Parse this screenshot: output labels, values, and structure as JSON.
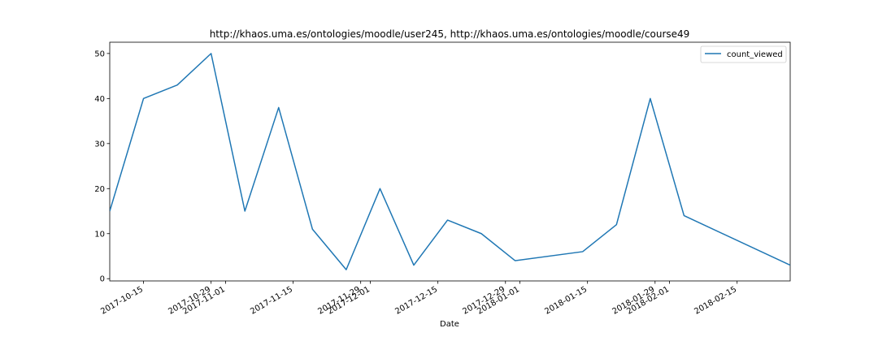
{
  "chart_data": {
    "type": "line",
    "title": "http://khaos.uma.es/ontologies/moodle/user245, http://khaos.uma.es/ontologies/moodle/course49",
    "xlabel": "Date",
    "ylabel": "",
    "legend_position": "top-right",
    "grid": false,
    "xlim": [
      "2017-10-08",
      "2018-02-26"
    ],
    "ylim": [
      -0.5,
      52.5
    ],
    "yticks": [
      0,
      10,
      20,
      30,
      40,
      50
    ],
    "xticks": [
      {
        "date": "2017-10-15",
        "label": "2017-10-15"
      },
      {
        "date": "2017-10-29",
        "label": "2017-10-29"
      },
      {
        "date": "2017-11-01",
        "label": "2017-11-01"
      },
      {
        "date": "2017-11-15",
        "label": "2017-11-15"
      },
      {
        "date": "2017-11-29",
        "label": "2017-11-29"
      },
      {
        "date": "2017-12-01",
        "label": "2017-12-01"
      },
      {
        "date": "2017-12-15",
        "label": "2017-12-15"
      },
      {
        "date": "2017-12-29",
        "label": "2017-12-29"
      },
      {
        "date": "2018-01-01",
        "label": "2018-01-01"
      },
      {
        "date": "2018-01-15",
        "label": "2018-01-15"
      },
      {
        "date": "2018-01-29",
        "label": "2018-01-29"
      },
      {
        "date": "2018-02-01",
        "label": "2018-02-01"
      },
      {
        "date": "2018-02-15",
        "label": "2018-02-15"
      }
    ],
    "series": [
      {
        "name": "count_viewed",
        "color": "#1f77b4",
        "x": [
          "2017-10-08",
          "2017-10-15",
          "2017-10-22",
          "2017-10-29",
          "2017-11-05",
          "2017-11-12",
          "2017-11-19",
          "2017-11-26",
          "2017-12-03",
          "2017-12-10",
          "2017-12-17",
          "2017-12-24",
          "2017-12-31",
          "2018-01-14",
          "2018-01-21",
          "2018-01-28",
          "2018-02-04",
          "2018-02-26"
        ],
        "values": [
          15,
          40,
          43,
          50,
          15,
          38,
          11,
          2,
          20,
          3,
          13,
          10,
          4,
          6,
          12,
          40,
          14,
          3
        ]
      }
    ]
  }
}
